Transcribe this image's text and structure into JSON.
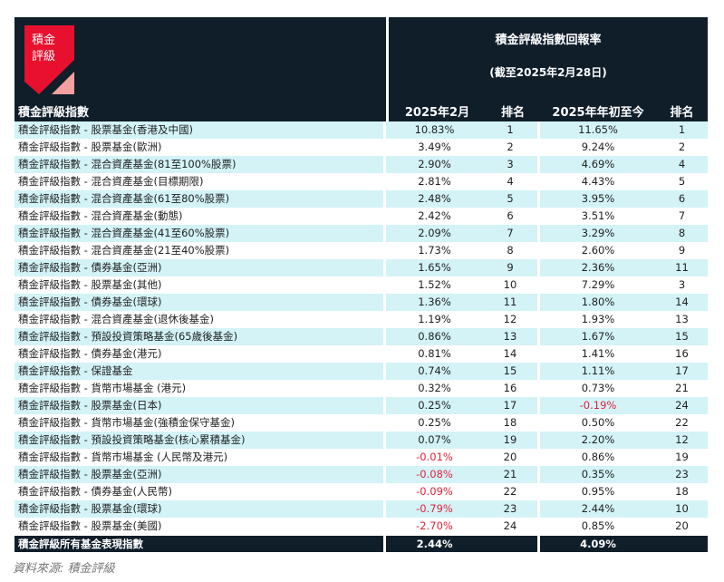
{
  "logo": {
    "line1": "積金",
    "line2": "評級",
    "colors": {
      "red": "#e8102e",
      "pink": "#f4a0a0"
    }
  },
  "header": {
    "left_column": "積金評級指數",
    "title": "積金評級指數回報率",
    "subtitle": "(截至2025年2月28日)",
    "columns": [
      "2025年2月",
      "排名",
      "2025年年初至今",
      "排名"
    ]
  },
  "rows": [
    {
      "name": "積金評級指數 - 股票基金(香港及中國)",
      "feb": "10.83%",
      "feb_rank": "1",
      "ytd": "11.65%",
      "ytd_rank": "1"
    },
    {
      "name": "積金評級指數 - 股票基金(歐洲)",
      "feb": "3.49%",
      "feb_rank": "2",
      "ytd": "9.24%",
      "ytd_rank": "2"
    },
    {
      "name": "積金評級指數 - 混合資產基金(81至100%股票)",
      "feb": "2.90%",
      "feb_rank": "3",
      "ytd": "4.69%",
      "ytd_rank": "4"
    },
    {
      "name": "積金評級指數 - 混合資產基金(目標期限)",
      "feb": "2.81%",
      "feb_rank": "4",
      "ytd": "4.43%",
      "ytd_rank": "5"
    },
    {
      "name": "積金評級指數 - 混合資產基金(61至80%股票)",
      "feb": "2.48%",
      "feb_rank": "5",
      "ytd": "3.95%",
      "ytd_rank": "6"
    },
    {
      "name": "積金評級指數 - 混合資產基金(動態)",
      "feb": "2.42%",
      "feb_rank": "6",
      "ytd": "3.51%",
      "ytd_rank": "7"
    },
    {
      "name": "積金評級指數 - 混合資產基金(41至60%股票)",
      "feb": "2.09%",
      "feb_rank": "7",
      "ytd": "3.29%",
      "ytd_rank": "8"
    },
    {
      "name": "積金評級指數 - 混合資產基金(21至40%股票)",
      "feb": "1.73%",
      "feb_rank": "8",
      "ytd": "2.60%",
      "ytd_rank": "9"
    },
    {
      "name": "積金評級指數 - 債券基金(亞洲)",
      "feb": "1.65%",
      "feb_rank": "9",
      "ytd": "2.36%",
      "ytd_rank": "11"
    },
    {
      "name": "積金評級指數 - 股票基金(其他)",
      "feb": "1.52%",
      "feb_rank": "10",
      "ytd": "7.29%",
      "ytd_rank": "3"
    },
    {
      "name": "積金評級指數 - 債券基金(環球)",
      "feb": "1.36%",
      "feb_rank": "11",
      "ytd": "1.80%",
      "ytd_rank": "14"
    },
    {
      "name": "積金評級指數 - 混合資產基金(退休後基金)",
      "feb": "1.19%",
      "feb_rank": "12",
      "ytd": "1.93%",
      "ytd_rank": "13"
    },
    {
      "name": "積金評級指數 - 預設投資策略基金(65歲後基金)",
      "feb": "0.86%",
      "feb_rank": "13",
      "ytd": "1.67%",
      "ytd_rank": "15"
    },
    {
      "name": "積金評級指數 - 債券基金(港元)",
      "feb": "0.81%",
      "feb_rank": "14",
      "ytd": "1.41%",
      "ytd_rank": "16"
    },
    {
      "name": "積金評級指數 - 保證基金",
      "feb": "0.74%",
      "feb_rank": "15",
      "ytd": "1.11%",
      "ytd_rank": "17"
    },
    {
      "name": "積金評級指數 - 貨幣市場基金 (港元)",
      "feb": "0.32%",
      "feb_rank": "16",
      "ytd": "0.73%",
      "ytd_rank": "21"
    },
    {
      "name": "積金評級指數 - 股票基金(日本)",
      "feb": "0.25%",
      "feb_rank": "17",
      "ytd": "-0.19%",
      "ytd_rank": "24"
    },
    {
      "name": "積金評級指數 - 貨幣市場基金(強積金保守基金)",
      "feb": "0.25%",
      "feb_rank": "18",
      "ytd": "0.50%",
      "ytd_rank": "22"
    },
    {
      "name": "積金評級指數 - 預設投資策略基金(核心累積基金)",
      "feb": "0.07%",
      "feb_rank": "19",
      "ytd": "2.20%",
      "ytd_rank": "12"
    },
    {
      "name": "積金評級指數 - 貨幣市場基金 (人民幣及港元)",
      "feb": "-0.01%",
      "feb_rank": "20",
      "ytd": "0.86%",
      "ytd_rank": "19"
    },
    {
      "name": "積金評級指數 - 股票基金(亞洲)",
      "feb": "-0.08%",
      "feb_rank": "21",
      "ytd": "0.35%",
      "ytd_rank": "23"
    },
    {
      "name": "積金評級指數 - 債券基金(人民幣)",
      "feb": "-0.09%",
      "feb_rank": "22",
      "ytd": "0.95%",
      "ytd_rank": "18"
    },
    {
      "name": "積金評級指數 - 股票基金(環球)",
      "feb": "-0.79%",
      "feb_rank": "23",
      "ytd": "2.44%",
      "ytd_rank": "10"
    },
    {
      "name": "積金評級指數 - 股票基金(美國)",
      "feb": "-2.70%",
      "feb_rank": "24",
      "ytd": "0.85%",
      "ytd_rank": "20"
    }
  ],
  "footer": {
    "name": "積金評級所有基金表現指數",
    "feb": "2.44%",
    "ytd": "4.09%"
  },
  "source": "資料來源:   積金評級",
  "colors": {
    "header_bg": "#101e2a",
    "row_alt": "#d3f3f7",
    "negative": "#e0223a"
  }
}
